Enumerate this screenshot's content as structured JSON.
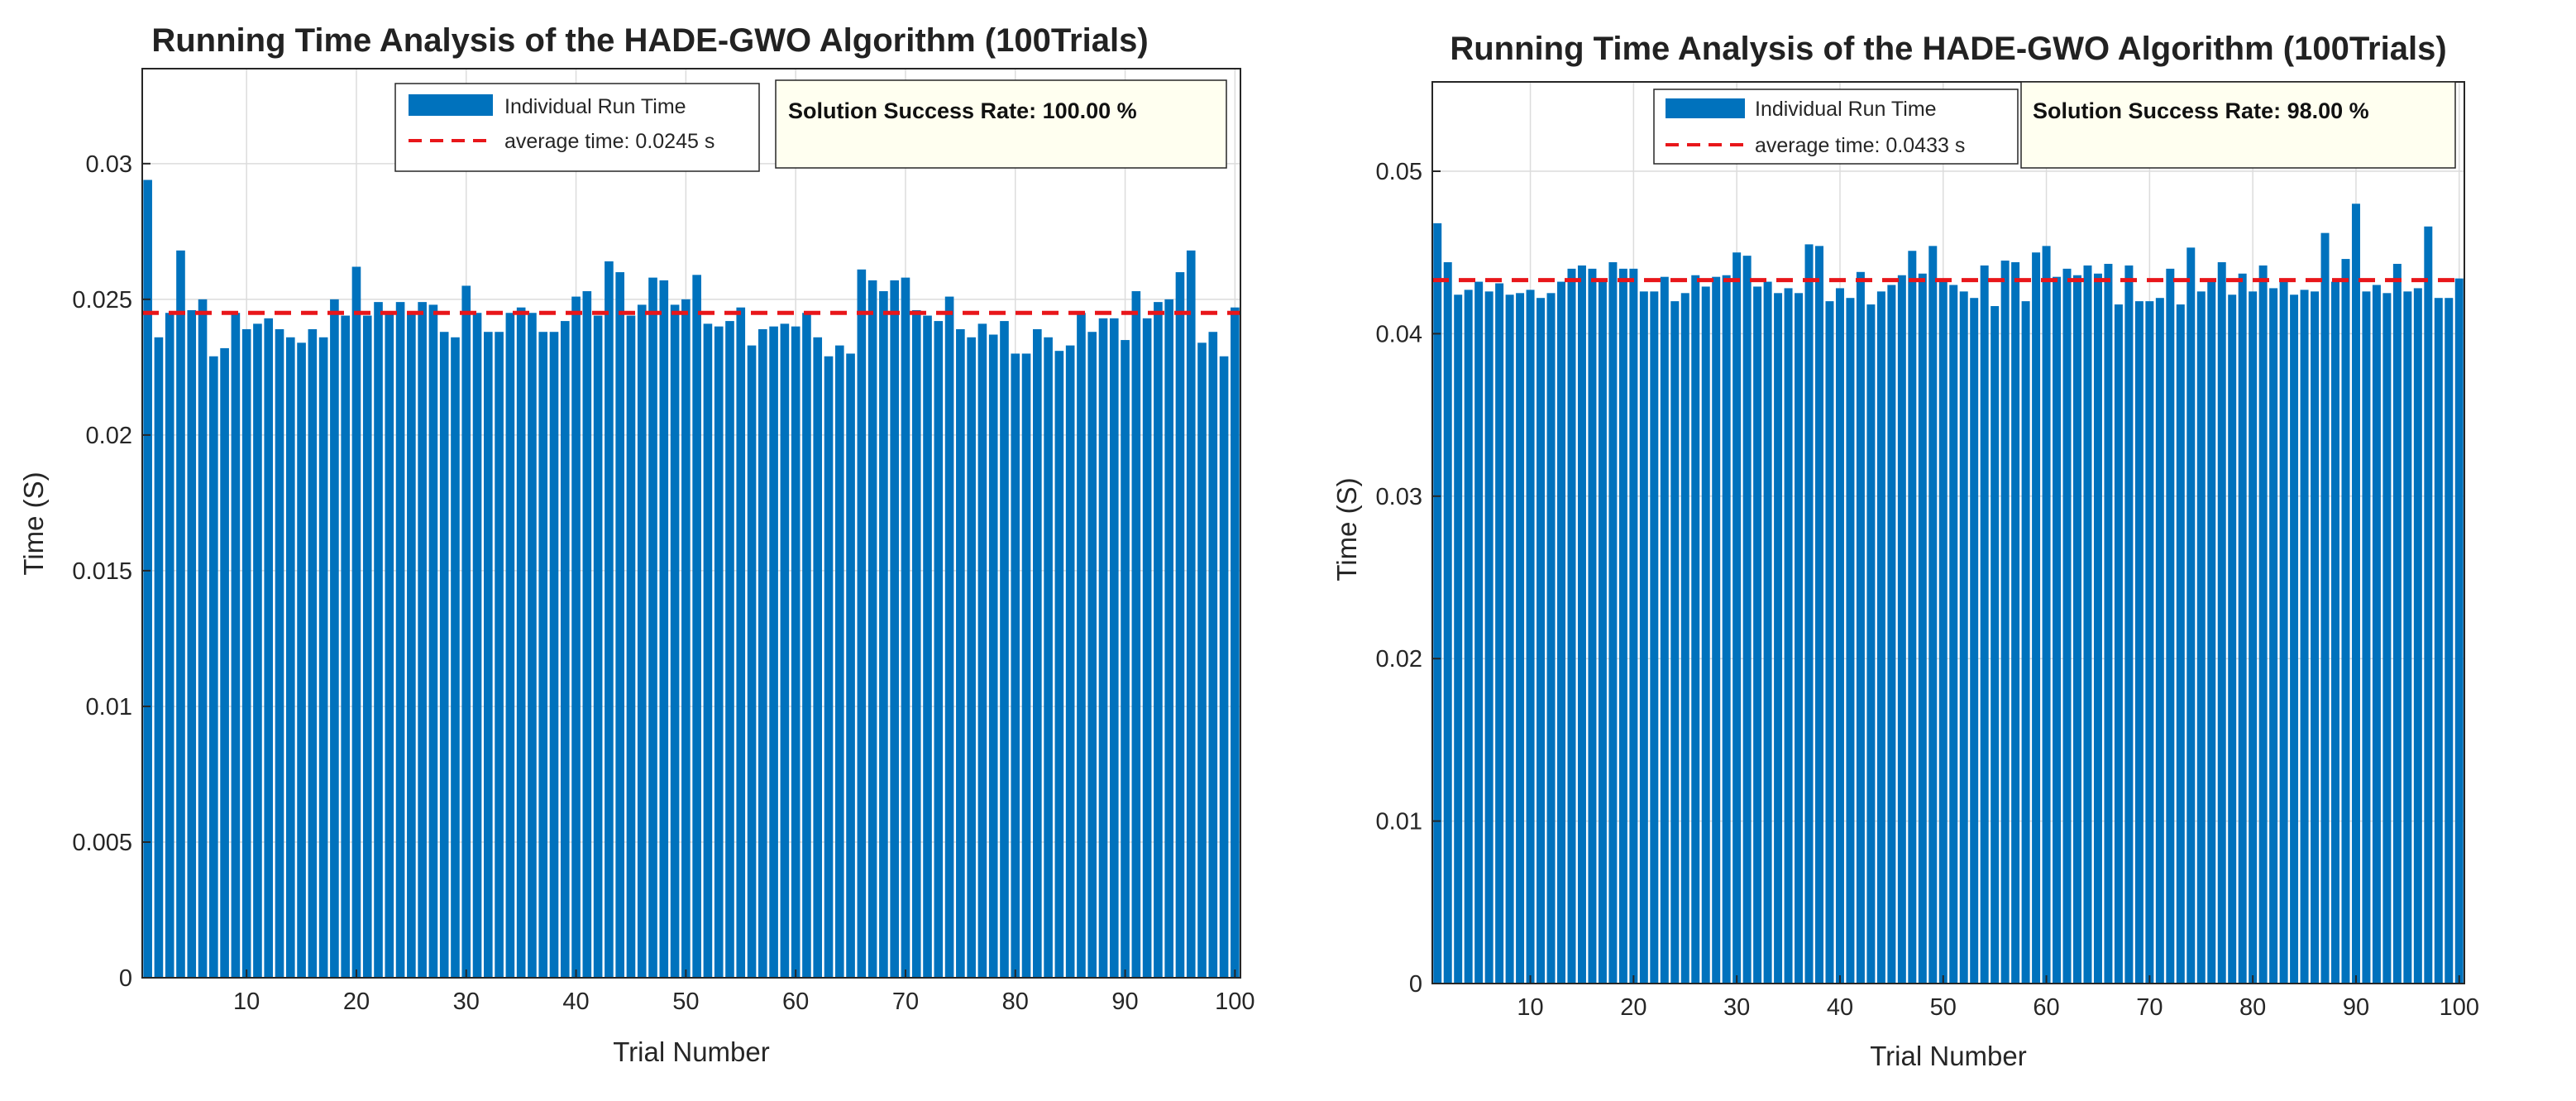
{
  "chart_data": [
    {
      "type": "bar",
      "title": "Running Time Analysis of the HADE-GWO Algorithm (100Trials)",
      "xlabel": "Trial Number",
      "ylabel": "Time (S)",
      "xlim": [
        0.5,
        100.5
      ],
      "ylim": [
        0,
        0.0335
      ],
      "xticks": [
        10,
        20,
        30,
        40,
        50,
        60,
        70,
        80,
        90,
        100
      ],
      "yticks": [
        0,
        0.005,
        0.01,
        0.015,
        0.02,
        0.025,
        0.03
      ],
      "ytick_labels": [
        "0",
        "0.005",
        "0.01",
        "0.015",
        "0.02",
        "0.025",
        "0.03"
      ],
      "grid": true,
      "legend_position": "top-center",
      "series": [
        {
          "name": "Individual Run Time",
          "color": "#0072BD",
          "values": [
            0.0294,
            0.0236,
            0.0245,
            0.0268,
            0.0246,
            0.025,
            0.0229,
            0.0232,
            0.0245,
            0.0239,
            0.0241,
            0.0243,
            0.0239,
            0.0236,
            0.0234,
            0.0239,
            0.0236,
            0.025,
            0.0244,
            0.0262,
            0.0244,
            0.0249,
            0.0245,
            0.0249,
            0.0245,
            0.0249,
            0.0248,
            0.0238,
            0.0236,
            0.0255,
            0.0245,
            0.0238,
            0.0238,
            0.0245,
            0.0247,
            0.0245,
            0.0238,
            0.0238,
            0.0242,
            0.0251,
            0.0253,
            0.0244,
            0.0264,
            0.026,
            0.0244,
            0.0248,
            0.0258,
            0.0257,
            0.0248,
            0.025,
            0.0259,
            0.0241,
            0.024,
            0.0242,
            0.0247,
            0.0233,
            0.0239,
            0.024,
            0.0241,
            0.024,
            0.0245,
            0.0236,
            0.0229,
            0.0233,
            0.023,
            0.0261,
            0.0257,
            0.0253,
            0.0257,
            0.0258,
            0.0246,
            0.0244,
            0.0242,
            0.0251,
            0.0239,
            0.0236,
            0.0241,
            0.0237,
            0.0242,
            0.023,
            0.023,
            0.0239,
            0.0236,
            0.0231,
            0.0233,
            0.0245,
            0.0238,
            0.0243,
            0.0243,
            0.0235,
            0.0253,
            0.0243,
            0.0249,
            0.025,
            0.026,
            0.0268,
            0.0234,
            0.0238,
            0.0229,
            0.0247
          ]
        }
      ],
      "average": {
        "name": "average time: 0.0245 s",
        "value": 0.0245,
        "color": "#E8161A"
      },
      "annotation": "Solution Success Rate: 100.00 %"
    },
    {
      "type": "bar",
      "title": "Running Time Analysis of the HADE-GWO Algorithm (100Trials)",
      "xlabel": "Trial Number",
      "ylabel": "Time (S)",
      "xlim": [
        0.5,
        100.5
      ],
      "ylim": [
        0,
        0.0555
      ],
      "xticks": [
        10,
        20,
        30,
        40,
        50,
        60,
        70,
        80,
        90,
        100
      ],
      "yticks": [
        0,
        0.01,
        0.02,
        0.03,
        0.04,
        0.05
      ],
      "ytick_labels": [
        "0",
        "0.01",
        "0.02",
        "0.03",
        "0.04",
        "0.05"
      ],
      "grid": true,
      "legend_position": "top-center",
      "series": [
        {
          "name": "Individual Run Time",
          "color": "#0072BD",
          "values": [
            0.0468,
            0.0444,
            0.0424,
            0.0427,
            0.0432,
            0.0426,
            0.0431,
            0.0424,
            0.0425,
            0.0427,
            0.0422,
            0.0425,
            0.0432,
            0.044,
            0.0442,
            0.044,
            0.0432,
            0.0444,
            0.044,
            0.044,
            0.0426,
            0.0426,
            0.0435,
            0.042,
            0.0425,
            0.0436,
            0.0429,
            0.0435,
            0.0436,
            0.045,
            0.0448,
            0.0429,
            0.0432,
            0.0425,
            0.0428,
            0.0425,
            0.0455,
            0.0454,
            0.042,
            0.0428,
            0.0422,
            0.0438,
            0.0418,
            0.0426,
            0.043,
            0.0436,
            0.0451,
            0.0437,
            0.0454,
            0.0432,
            0.043,
            0.0426,
            0.0422,
            0.0442,
            0.0417,
            0.0445,
            0.0444,
            0.042,
            0.045,
            0.0454,
            0.0435,
            0.044,
            0.0436,
            0.0442,
            0.0437,
            0.0443,
            0.0418,
            0.0442,
            0.042,
            0.042,
            0.0422,
            0.044,
            0.0418,
            0.0453,
            0.0426,
            0.0433,
            0.0444,
            0.0424,
            0.0437,
            0.0426,
            0.0442,
            0.0428,
            0.0433,
            0.0424,
            0.0427,
            0.0426,
            0.0462,
            0.0432,
            0.0446,
            0.048,
            0.0426,
            0.043,
            0.0425,
            0.0443,
            0.0426,
            0.0428,
            0.0466,
            0.0422,
            0.0422,
            0.0434
          ]
        }
      ],
      "average": {
        "name": "average time: 0.0433 s",
        "value": 0.0433,
        "color": "#E8161A"
      },
      "annotation": "Solution Success Rate: 98.00 %"
    }
  ]
}
